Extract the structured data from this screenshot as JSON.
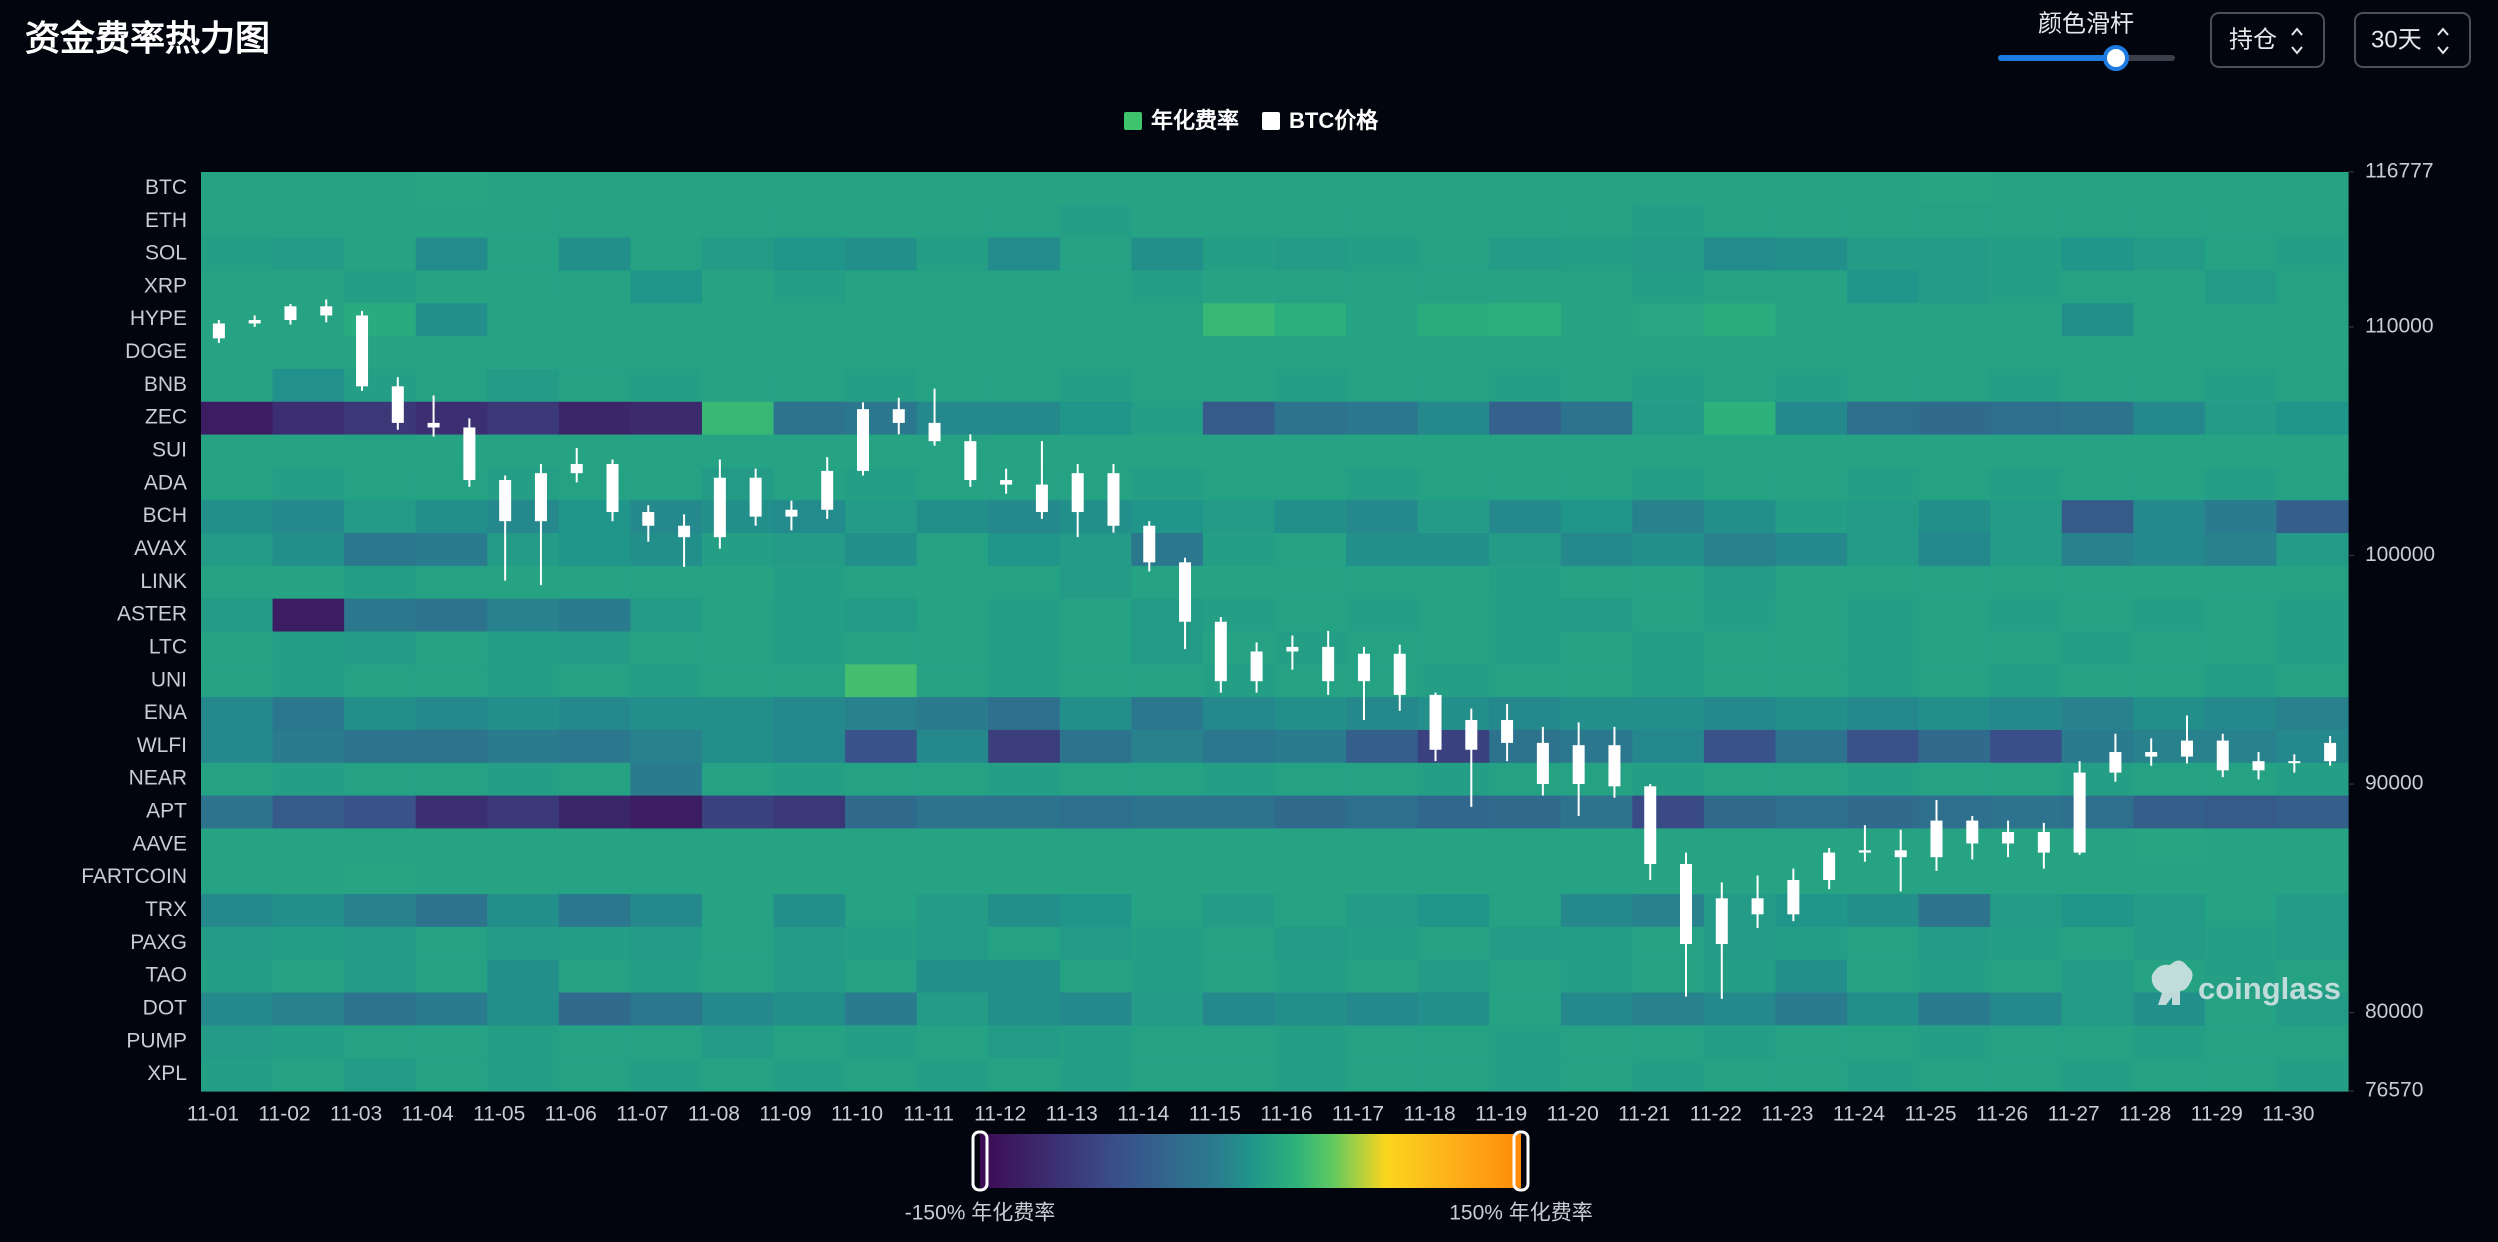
{
  "chart_data": {
    "type": "heatmap",
    "title": "资金费率热力图",
    "controls": {
      "slider_label": "颜色滑杆",
      "position": "持仓",
      "period": "30天"
    },
    "heat": {
      "name": "年化费率",
      "color": "#3ec46d"
    },
    "colorbar": {
      "range": [
        -150,
        150
      ],
      "min_label": "-150% 年化费率",
      "max_label": "150% 年化费率"
    },
    "colorscale": [
      [
        -150,
        "#3d0a54"
      ],
      [
        -75,
        "#3a4f8a"
      ],
      [
        -20,
        "#2a7b8e"
      ],
      [
        0,
        "#20958a"
      ],
      [
        25,
        "#2db27b"
      ],
      [
        45,
        "#5ec962"
      ],
      [
        75,
        "#fbd51e"
      ],
      [
        110,
        "#fdb21a"
      ],
      [
        150,
        "#ff8a0a"
      ]
    ],
    "rows": [
      "BTC",
      "ETH",
      "SOL",
      "XRP",
      "HYPE",
      "DOGE",
      "BNB",
      "ZEC",
      "SUI",
      "ADA",
      "BCH",
      "AVAX",
      "LINK",
      "ASTER",
      "LTC",
      "UNI",
      "ENA",
      "WLFI",
      "NEAR",
      "APT",
      "AAVE",
      "FARTCOIN",
      "TRX",
      "PAXG",
      "TAO",
      "DOT",
      "PUMP",
      "XPL"
    ],
    "x": [
      "11-01",
      "11-02",
      "11-03",
      "11-04",
      "11-05",
      "11-06",
      "11-07",
      "11-08",
      "11-09",
      "11-10",
      "11-11",
      "11-12",
      "11-13",
      "11-14",
      "11-15",
      "11-16",
      "11-17",
      "11-18",
      "11-19",
      "11-20",
      "11-21",
      "11-22",
      "11-23",
      "11-24",
      "11-25",
      "11-26",
      "11-27",
      "11-28",
      "11-29",
      "11-30"
    ],
    "values": [
      [
        12,
        12,
        12,
        14,
        12,
        12,
        12,
        12,
        12,
        12,
        12,
        12,
        12,
        12,
        12,
        12,
        12,
        12,
        12,
        12,
        12,
        12,
        12,
        12,
        14,
        12,
        12,
        12,
        12,
        12
      ],
      [
        10,
        12,
        10,
        12,
        10,
        10,
        12,
        10,
        10,
        12,
        10,
        10,
        8,
        12,
        10,
        10,
        10,
        12,
        10,
        10,
        8,
        10,
        10,
        10,
        10,
        10,
        10,
        10,
        10,
        10
      ],
      [
        8,
        5,
        12,
        -8,
        10,
        -5,
        10,
        5,
        0,
        -5,
        8,
        -8,
        10,
        -5,
        8,
        5,
        8,
        10,
        5,
        8,
        5,
        -8,
        -5,
        5,
        5,
        8,
        0,
        5,
        10,
        8
      ],
      [
        10,
        12,
        8,
        12,
        10,
        10,
        0,
        12,
        8,
        12,
        10,
        12,
        10,
        8,
        12,
        10,
        10,
        10,
        12,
        10,
        8,
        10,
        12,
        0,
        5,
        8,
        10,
        12,
        5,
        10
      ],
      [
        12,
        12,
        18,
        -5,
        12,
        12,
        12,
        12,
        12,
        12,
        12,
        12,
        12,
        12,
        30,
        22,
        12,
        20,
        22,
        12,
        15,
        20,
        12,
        12,
        12,
        12,
        -5,
        12,
        12,
        12
      ],
      [
        12,
        10,
        12,
        12,
        12,
        10,
        12,
        12,
        12,
        12,
        12,
        12,
        12,
        12,
        12,
        12,
        12,
        12,
        12,
        12,
        12,
        12,
        12,
        12,
        12,
        12,
        12,
        12,
        12,
        12
      ],
      [
        10,
        -3,
        8,
        10,
        5,
        10,
        8,
        10,
        10,
        8,
        10,
        10,
        8,
        10,
        10,
        8,
        10,
        10,
        8,
        10,
        8,
        10,
        8,
        10,
        10,
        8,
        10,
        10,
        8,
        10
      ],
      [
        -130,
        -110,
        -100,
        -110,
        -100,
        -120,
        -115,
        30,
        -30,
        -25,
        -10,
        -10,
        0,
        8,
        -60,
        -30,
        -25,
        -10,
        -50,
        -30,
        5,
        25,
        -10,
        -35,
        -40,
        -35,
        -30,
        -10,
        5,
        0
      ],
      [
        12,
        12,
        10,
        12,
        12,
        12,
        10,
        12,
        12,
        12,
        10,
        12,
        12,
        12,
        12,
        12,
        12,
        12,
        12,
        12,
        12,
        12,
        12,
        12,
        12,
        12,
        12,
        12,
        12,
        12
      ],
      [
        10,
        8,
        10,
        10,
        8,
        10,
        10,
        5,
        10,
        8,
        10,
        10,
        10,
        8,
        10,
        10,
        8,
        10,
        10,
        10,
        8,
        10,
        10,
        8,
        10,
        8,
        10,
        10,
        8,
        10
      ],
      [
        -5,
        -10,
        5,
        -5,
        -10,
        0,
        -10,
        -5,
        -8,
        5,
        -5,
        -10,
        -5,
        0,
        5,
        -5,
        -10,
        5,
        -10,
        0,
        -15,
        -5,
        8,
        5,
        -5,
        5,
        -60,
        -10,
        -20,
        -55
      ],
      [
        5,
        -5,
        -25,
        -20,
        5,
        0,
        -5,
        8,
        5,
        -5,
        10,
        0,
        5,
        -25,
        8,
        10,
        -5,
        -5,
        5,
        -10,
        -5,
        -15,
        -10,
        5,
        -10,
        5,
        -15,
        -10,
        -15,
        5
      ],
      [
        10,
        12,
        8,
        10,
        12,
        10,
        10,
        12,
        8,
        10,
        12,
        10,
        5,
        10,
        12,
        10,
        10,
        12,
        8,
        10,
        10,
        5,
        12,
        10,
        10,
        10,
        10,
        12,
        10,
        10
      ],
      [
        5,
        -130,
        -25,
        -30,
        -15,
        -20,
        5,
        10,
        8,
        5,
        10,
        8,
        10,
        5,
        8,
        10,
        8,
        10,
        8,
        5,
        10,
        8,
        10,
        8,
        10,
        8,
        10,
        8,
        10,
        8
      ],
      [
        10,
        8,
        5,
        10,
        8,
        5,
        10,
        10,
        8,
        10,
        10,
        8,
        10,
        5,
        10,
        8,
        10,
        10,
        8,
        10,
        8,
        10,
        10,
        8,
        10,
        10,
        8,
        10,
        10,
        8
      ],
      [
        10,
        8,
        10,
        10,
        8,
        10,
        8,
        10,
        10,
        35,
        10,
        8,
        10,
        10,
        8,
        10,
        10,
        8,
        10,
        10,
        8,
        10,
        10,
        8,
        10,
        8,
        10,
        10,
        8,
        10
      ],
      [
        -10,
        -25,
        -5,
        -10,
        -5,
        -10,
        -5,
        -5,
        -10,
        -15,
        -20,
        -35,
        -5,
        -25,
        -10,
        -5,
        -10,
        -5,
        -10,
        -5,
        -5,
        -10,
        -5,
        -10,
        -5,
        -10,
        -15,
        -5,
        -10,
        -15
      ],
      [
        -10,
        -20,
        -30,
        -30,
        -20,
        -25,
        -15,
        -5,
        -10,
        -70,
        -10,
        -95,
        -30,
        -15,
        -25,
        -20,
        -55,
        -90,
        -30,
        -25,
        -10,
        -70,
        -30,
        -70,
        -40,
        -75,
        -20,
        -15,
        -15,
        -10
      ],
      [
        10,
        8,
        10,
        10,
        8,
        10,
        -20,
        10,
        8,
        10,
        10,
        8,
        10,
        10,
        8,
        10,
        10,
        8,
        10,
        10,
        8,
        10,
        10,
        8,
        10,
        10,
        8,
        10,
        10,
        8
      ],
      [
        -30,
        -60,
        -70,
        -110,
        -100,
        -120,
        -130,
        -90,
        -100,
        -40,
        -30,
        -30,
        -35,
        -30,
        -30,
        -40,
        -35,
        -45,
        -40,
        -30,
        -80,
        -40,
        -35,
        -40,
        -35,
        -30,
        -35,
        -55,
        -60,
        -55
      ],
      [
        12,
        12,
        12,
        12,
        12,
        12,
        10,
        12,
        12,
        12,
        12,
        12,
        12,
        12,
        12,
        12,
        12,
        12,
        12,
        12,
        12,
        12,
        12,
        12,
        12,
        12,
        12,
        14,
        12,
        12
      ],
      [
        12,
        12,
        14,
        12,
        12,
        12,
        12,
        12,
        12,
        12,
        12,
        12,
        12,
        12,
        12,
        12,
        12,
        12,
        12,
        12,
        12,
        12,
        12,
        12,
        12,
        12,
        12,
        12,
        12,
        12
      ],
      [
        -10,
        -5,
        -15,
        -30,
        -5,
        -25,
        -10,
        10,
        -5,
        10,
        5,
        -5,
        0,
        10,
        5,
        10,
        5,
        0,
        10,
        -10,
        -15,
        5,
        0,
        -5,
        -30,
        5,
        0,
        5,
        10,
        5
      ],
      [
        5,
        8,
        5,
        10,
        5,
        8,
        5,
        10,
        5,
        8,
        5,
        10,
        5,
        8,
        10,
        5,
        8,
        10,
        5,
        8,
        10,
        5,
        8,
        10,
        5,
        8,
        10,
        5,
        8,
        5
      ],
      [
        8,
        10,
        5,
        10,
        -5,
        10,
        8,
        10,
        5,
        10,
        -5,
        -5,
        10,
        8,
        10,
        8,
        10,
        5,
        10,
        8,
        10,
        8,
        -5,
        10,
        8,
        10,
        5,
        10,
        8,
        10
      ],
      [
        -10,
        -15,
        -30,
        -20,
        -5,
        -40,
        -25,
        -10,
        -5,
        -20,
        5,
        -5,
        -10,
        5,
        -10,
        -5,
        -10,
        -5,
        10,
        -10,
        -15,
        -10,
        -20,
        -5,
        -20,
        -10,
        5,
        -5,
        10,
        5
      ],
      [
        5,
        8,
        10,
        10,
        8,
        10,
        10,
        5,
        10,
        8,
        10,
        5,
        8,
        10,
        10,
        8,
        10,
        10,
        8,
        10,
        10,
        8,
        10,
        10,
        8,
        10,
        10,
        8,
        10,
        10
      ],
      [
        8,
        10,
        5,
        10,
        8,
        10,
        8,
        10,
        8,
        10,
        8,
        10,
        8,
        10,
        10,
        8,
        10,
        10,
        8,
        10,
        8,
        10,
        10,
        8,
        10,
        10,
        8,
        10,
        10,
        8
      ]
    ],
    "candles": {
      "name": "BTC价格",
      "color": "#ffffff",
      "open": [
        109500,
        110150,
        110300,
        110900,
        110500,
        107400,
        105800,
        105600,
        103300,
        101500,
        103600,
        104000,
        101900,
        101300,
        100800,
        103400,
        101700,
        102000,
        103700,
        106400,
        105800,
        105000,
        103300,
        103100,
        101900,
        103600,
        101300,
        99700,
        97100,
        94500,
        95800,
        96000,
        94500,
        95700,
        93900,
        91500,
        92800,
        91800,
        90000,
        91700,
        89900,
        86500,
        83000,
        85000,
        84300,
        85800,
        87000,
        87100,
        86800,
        88400,
        87400,
        87900,
        87000,
        90500,
        91400,
        91200,
        91900,
        90600,
        91000,
        91000
      ],
      "high": [
        110300,
        110500,
        111000,
        111200,
        110700,
        107800,
        107000,
        106000,
        103500,
        104000,
        104700,
        104200,
        102200,
        101800,
        104200,
        103800,
        102400,
        104300,
        106700,
        106900,
        107300,
        105300,
        103800,
        105000,
        104000,
        104000,
        101500,
        99900,
        97300,
        96200,
        96500,
        96700,
        96000,
        96100,
        94000,
        93300,
        93500,
        92500,
        92700,
        92500,
        90000,
        87000,
        85700,
        86000,
        86300,
        87200,
        88200,
        88000,
        89300,
        88600,
        88400,
        88300,
        91000,
        92200,
        92000,
        93000,
        92200,
        91400,
        91300,
        92100
      ],
      "low": [
        109300,
        110000,
        110100,
        110200,
        107200,
        105500,
        105200,
        103000,
        98900,
        98700,
        103200,
        101500,
        100600,
        99500,
        100300,
        101300,
        101100,
        101600,
        103500,
        105300,
        104800,
        103000,
        102700,
        101600,
        100800,
        101000,
        99300,
        95900,
        94000,
        94000,
        95000,
        93900,
        92800,
        93200,
        91000,
        89000,
        91000,
        89500,
        88600,
        89400,
        85800,
        80700,
        80600,
        83700,
        84000,
        85400,
        86600,
        85300,
        86200,
        86700,
        86800,
        86300,
        86900,
        90100,
        90800,
        90900,
        90300,
        90200,
        90500,
        90800
      ],
      "close": [
        110150,
        110300,
        110900,
        110500,
        107400,
        105800,
        105600,
        103300,
        101500,
        103600,
        104000,
        101900,
        101300,
        100800,
        103400,
        101700,
        102000,
        103700,
        106400,
        105800,
        105000,
        103300,
        103100,
        101900,
        103600,
        101300,
        99700,
        97100,
        94500,
        95800,
        96000,
        94500,
        95700,
        93900,
        91500,
        92800,
        91800,
        90000,
        91700,
        89900,
        86500,
        83000,
        85000,
        84300,
        85800,
        87000,
        87100,
        86800,
        88400,
        87400,
        87900,
        87000,
        90500,
        91400,
        91200,
        91900,
        90600,
        91000,
        91000,
        91800
      ]
    },
    "ylim": [
      76570,
      116777
    ],
    "yticks": [
      76570,
      80000,
      90000,
      100000,
      110000,
      116777
    ],
    "watermark": "coinglass"
  }
}
